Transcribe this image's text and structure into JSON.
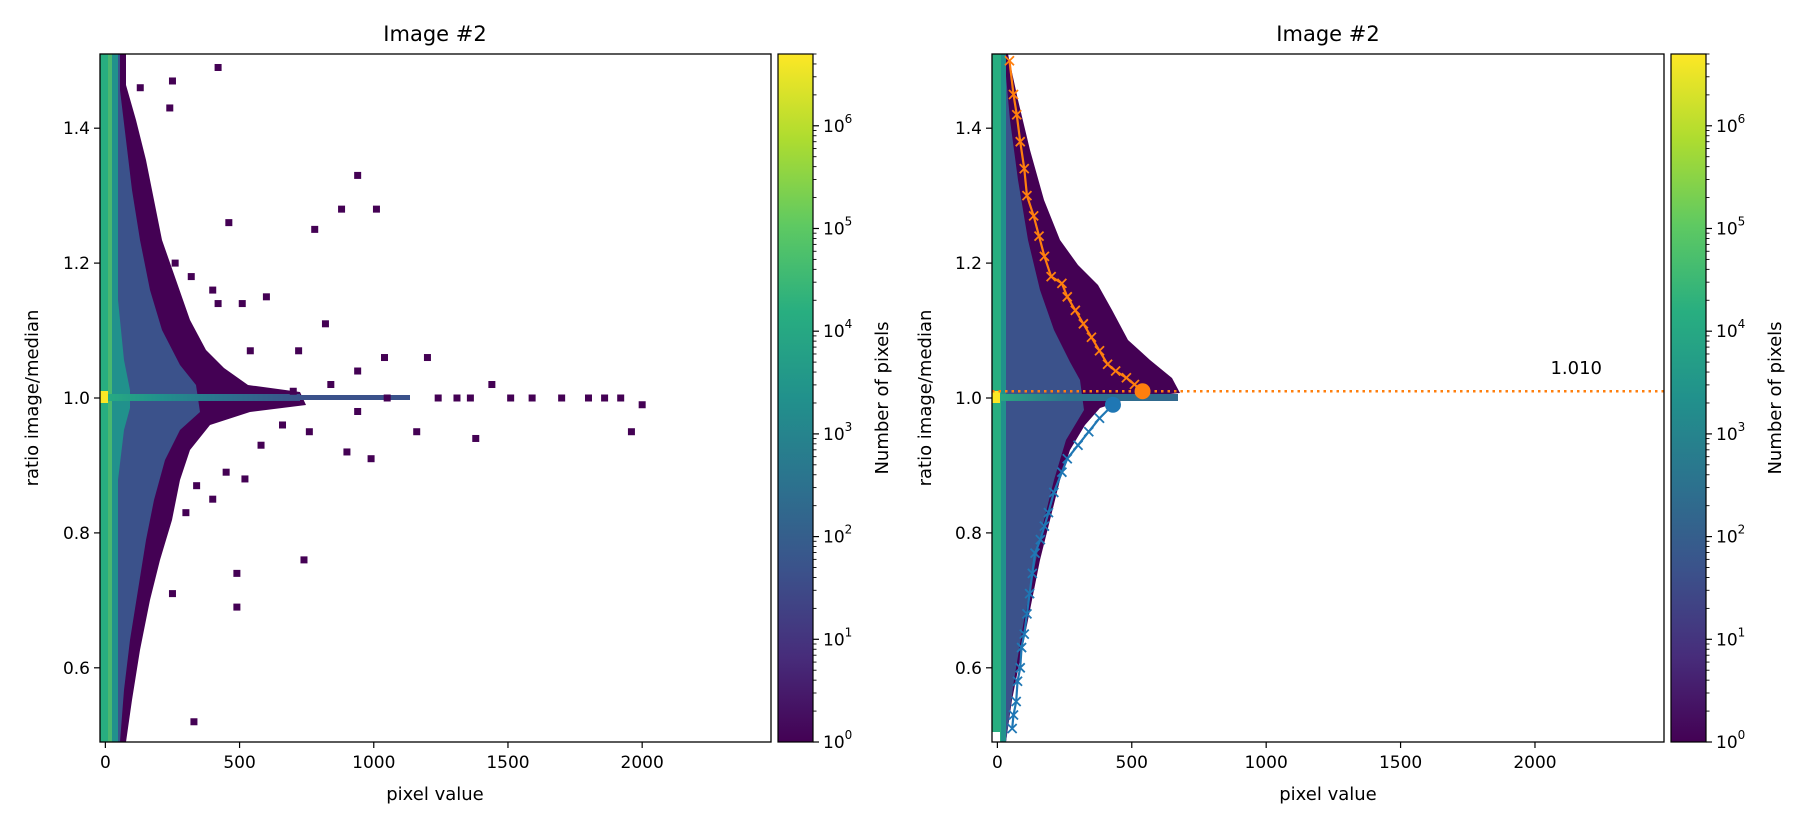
{
  "chart_data": [
    {
      "type": "heatmap",
      "title": "Image #2",
      "xlabel": "pixel value",
      "ylabel": "ratio image/median",
      "xlim": [
        -20,
        2480
      ],
      "ylim": [
        0.49,
        1.51
      ],
      "xticks": [
        0,
        500,
        1000,
        1500,
        2000
      ],
      "yticks": [
        0.6,
        0.8,
        1.0,
        1.2,
        1.4
      ],
      "colorbar": {
        "label": "Number of pixels",
        "scale": "log",
        "range": [
          1,
          5000000
        ],
        "tick_exponents": [
          0,
          1,
          2,
          3,
          4,
          5,
          6
        ],
        "colormap": "viridis"
      },
      "sparse_cells": [
        [
          420,
          1.49
        ],
        [
          130,
          1.46
        ],
        [
          250,
          1.47
        ],
        [
          240,
          1.43
        ],
        [
          460,
          1.26
        ],
        [
          940,
          1.33
        ],
        [
          880,
          1.28
        ],
        [
          1010,
          1.28
        ],
        [
          780,
          1.25
        ],
        [
          260,
          1.2
        ],
        [
          320,
          1.18
        ],
        [
          400,
          1.16
        ],
        [
          510,
          1.14
        ],
        [
          420,
          1.14
        ],
        [
          600,
          1.15
        ],
        [
          820,
          1.11
        ],
        [
          720,
          1.07
        ],
        [
          540,
          1.07
        ],
        [
          1200,
          1.06
        ],
        [
          1040,
          1.06
        ],
        [
          940,
          1.04
        ],
        [
          1440,
          1.02
        ],
        [
          840,
          1.02
        ],
        [
          700,
          1.01
        ],
        [
          1050,
          1.0
        ],
        [
          1240,
          1.0
        ],
        [
          1310,
          1.0
        ],
        [
          1360,
          1.0
        ],
        [
          1510,
          1.0
        ],
        [
          1590,
          1.0
        ],
        [
          1700,
          1.0
        ],
        [
          1800,
          1.0
        ],
        [
          1860,
          1.0
        ],
        [
          1920,
          1.0
        ],
        [
          2000,
          0.99
        ],
        [
          1960,
          0.95
        ],
        [
          1380,
          0.94
        ],
        [
          1160,
          0.95
        ],
        [
          760,
          0.95
        ],
        [
          660,
          0.96
        ],
        [
          580,
          0.93
        ],
        [
          940,
          0.98
        ],
        [
          900,
          0.92
        ],
        [
          990,
          0.91
        ],
        [
          520,
          0.88
        ],
        [
          450,
          0.89
        ],
        [
          400,
          0.85
        ],
        [
          340,
          0.87
        ],
        [
          300,
          0.83
        ],
        [
          740,
          0.76
        ],
        [
          490,
          0.74
        ],
        [
          490,
          0.69
        ],
        [
          250,
          0.71
        ],
        [
          330,
          0.52
        ]
      ]
    },
    {
      "type": "heatmap",
      "title": "Image #2",
      "xlabel": "pixel value",
      "ylabel": "ratio image/median",
      "xlim": [
        -20,
        2480
      ],
      "ylim": [
        0.49,
        1.51
      ],
      "xticks": [
        0,
        500,
        1000,
        1500,
        2000
      ],
      "yticks": [
        0.6,
        0.8,
        1.0,
        1.2,
        1.4
      ],
      "colorbar": {
        "label": "Number of pixels",
        "scale": "log",
        "range": [
          1,
          5000000
        ],
        "tick_exponents": [
          0,
          1,
          2,
          3,
          4,
          5,
          6
        ],
        "colormap": "viridis"
      },
      "annotation": "1.010",
      "hline": {
        "y": 1.01,
        "color": "#ff7f0e",
        "style": "dotted"
      },
      "series": [
        {
          "color": "#ff7f0e",
          "x": [
            45,
            60,
            72,
            85,
            100,
            110,
            135,
            155,
            175,
            200,
            240,
            260,
            290,
            320,
            350,
            380,
            410,
            440,
            480,
            510,
            540
          ],
          "y": [
            1.5,
            1.45,
            1.42,
            1.38,
            1.34,
            1.3,
            1.27,
            1.24,
            1.21,
            1.18,
            1.17,
            1.15,
            1.13,
            1.11,
            1.09,
            1.07,
            1.05,
            1.04,
            1.03,
            1.02,
            1.01
          ]
        },
        {
          "color": "#1f77b4",
          "x": [
            430,
            380,
            340,
            300,
            260,
            240,
            210,
            190,
            175,
            160,
            140,
            130,
            120,
            110,
            100,
            90,
            85,
            75,
            70,
            60,
            55
          ],
          "y": [
            0.99,
            0.97,
            0.95,
            0.93,
            0.91,
            0.89,
            0.86,
            0.83,
            0.81,
            0.79,
            0.77,
            0.74,
            0.71,
            0.68,
            0.65,
            0.63,
            0.6,
            0.58,
            0.55,
            0.53,
            0.51
          ]
        }
      ]
    }
  ]
}
